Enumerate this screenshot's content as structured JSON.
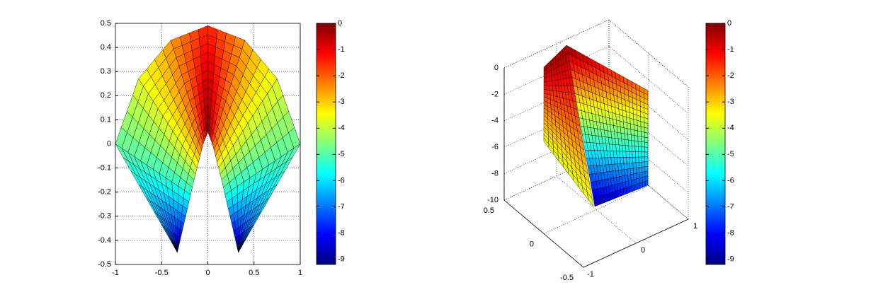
{
  "chart_data": [
    {
      "type": "surface-2d",
      "xlim": [
        -1,
        1
      ],
      "xticks": [
        -1,
        -0.5,
        0,
        0.5,
        1
      ],
      "ylim": [
        -0.5,
        0.5
      ],
      "yticks": [
        -0.5,
        -0.4,
        -0.3,
        -0.2,
        -0.1,
        0,
        0.1,
        0.2,
        0.3,
        0.4,
        0.5
      ],
      "grid": true,
      "colormap": "jet",
      "colorbar": {
        "clim": [
          -9.2,
          0
        ],
        "ticks": [
          0,
          -1,
          -2,
          -3,
          -4,
          -5,
          -6,
          -7,
          -8,
          -9
        ]
      }
    },
    {
      "type": "surface-3d",
      "xlim": [
        -1,
        1
      ],
      "xticks": [
        -1,
        0,
        1
      ],
      "ylim": [
        -0.5,
        0.5
      ],
      "yticks": [
        -0.5,
        0,
        0.5
      ],
      "zlim": [
        -10,
        0
      ],
      "zticks": [
        0,
        -2,
        -4,
        -6,
        -8,
        -10
      ],
      "grid": true,
      "colormap": "jet",
      "colorbar": {
        "clim": [
          -9.2,
          0
        ],
        "ticks": [
          0,
          -1,
          -2,
          -3,
          -4,
          -5,
          -6,
          -7,
          -8,
          -9
        ]
      }
    }
  ]
}
